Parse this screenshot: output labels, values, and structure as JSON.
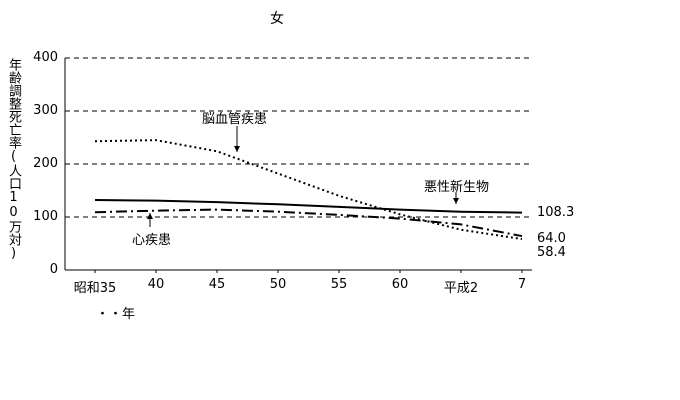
{
  "title": "女",
  "ylabel": "年齢調整死亡率(人口10万対)",
  "xnote": "・・年",
  "chart_data": {
    "type": "line",
    "title": "女",
    "ylabel": "年齢調整死亡率(人口10万対)",
    "xlabel": "年",
    "ylim": [
      0,
      400
    ],
    "y_ticks": [
      0,
      100,
      200,
      300,
      400
    ],
    "grid": "horizontal-dashed",
    "legend_position": "inline-annotations",
    "x_tick_labels": [
      "昭和35",
      "40",
      "45",
      "50",
      "55",
      "60",
      "平成2",
      "7"
    ],
    "series": [
      {
        "name": "脳血管疾患",
        "style": "dotted",
        "values": [
          243,
          245,
          224,
          182,
          140,
          105,
          76,
          58.4
        ],
        "end_label": "58.4"
      },
      {
        "name": "悪性新生物",
        "style": "solid",
        "values": [
          132,
          131,
          128,
          124,
          119,
          114,
          110,
          108.3
        ],
        "end_label": "108.3"
      },
      {
        "name": "心疾患",
        "style": "dashdot",
        "values": [
          109,
          112,
          114,
          110,
          104,
          97,
          86,
          64
        ],
        "end_label": "64.0"
      }
    ]
  }
}
